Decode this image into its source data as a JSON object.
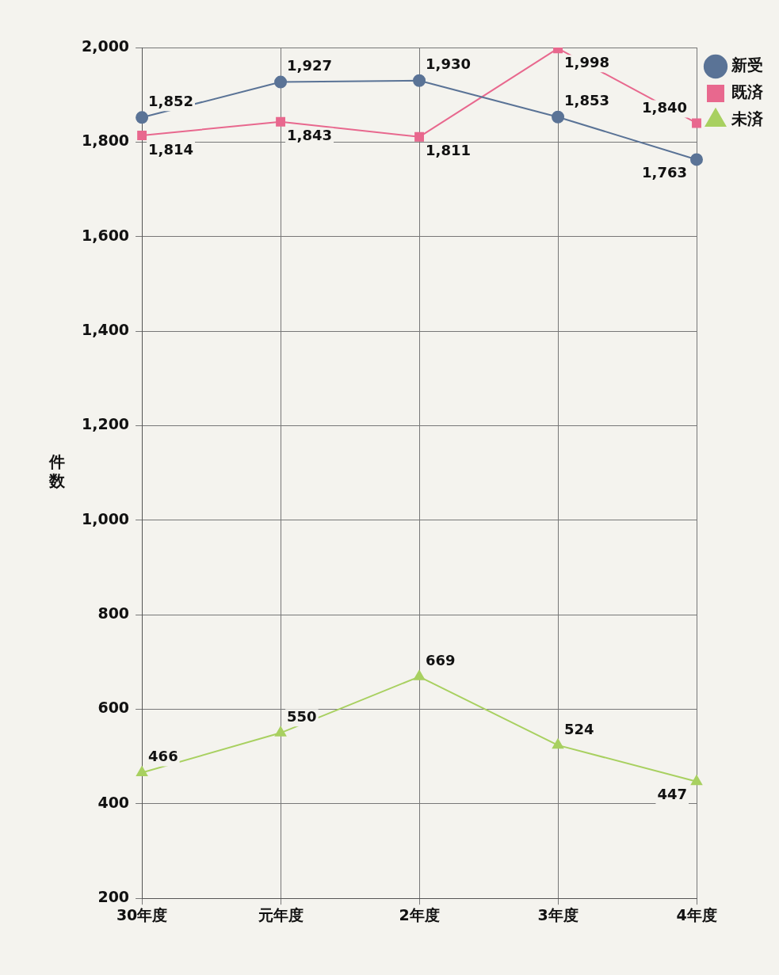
{
  "chart_data": {
    "type": "line",
    "ylabel": "件数",
    "categories": [
      "30年度",
      "元年度",
      "2年度",
      "3年度",
      "4年度"
    ],
    "series": [
      {
        "name": "新受",
        "color": "#5a7396",
        "marker": "circle",
        "values": [
          1852,
          1927,
          1930,
          1853,
          1763
        ],
        "value_labels": [
          "1,852",
          "1,927",
          "1,930",
          "1,853",
          "1,763"
        ]
      },
      {
        "name": "既済",
        "color": "#e8688e",
        "marker": "square",
        "values": [
          1814,
          1843,
          1811,
          1998,
          1840
        ],
        "value_labels": [
          "1,814",
          "1,843",
          "1,811",
          "1,998",
          "1,840"
        ]
      },
      {
        "name": "未済",
        "color": "#a8d060",
        "marker": "triangle",
        "values": [
          466,
          550,
          669,
          524,
          447
        ],
        "value_labels": [
          "466",
          "550",
          "669",
          "524",
          "447"
        ]
      }
    ],
    "ylim": [
      200,
      2000
    ],
    "yticks": [
      {
        "value": 200,
        "label": "200"
      },
      {
        "value": 400,
        "label": "400"
      },
      {
        "value": 600,
        "label": "600"
      },
      {
        "value": 800,
        "label": "800"
      },
      {
        "value": 1000,
        "label": "1,000"
      },
      {
        "value": 1200,
        "label": "1,200"
      },
      {
        "value": 1400,
        "label": "1,400"
      },
      {
        "value": 1600,
        "label": "1,600"
      },
      {
        "value": 1800,
        "label": "1,800"
      },
      {
        "value": 2000,
        "label": "2,000"
      }
    ],
    "grid": true,
    "legend": "top right",
    "line_style": "solid"
  }
}
